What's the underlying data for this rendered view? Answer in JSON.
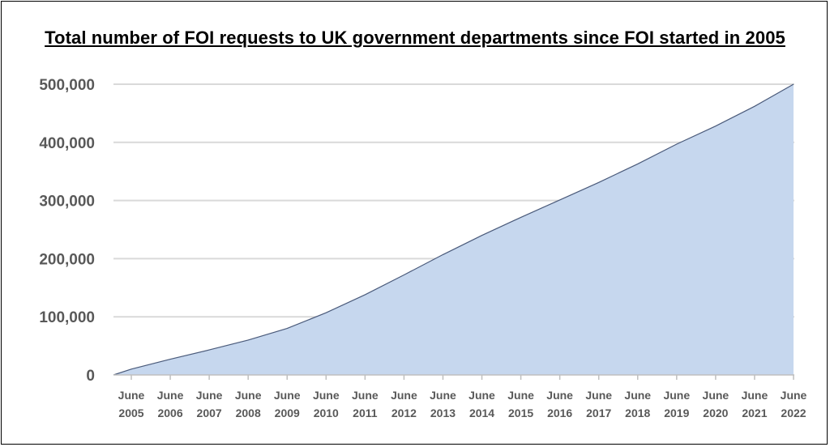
{
  "chart_data": {
    "type": "area",
    "title": "Total number of FOI requests to UK government departments since FOI started in 2005",
    "xlabel": "",
    "ylabel": "",
    "ylim": [
      0,
      500000
    ],
    "yticks": [
      0,
      100000,
      200000,
      300000,
      400000,
      500000
    ],
    "ytick_labels": [
      "0",
      "100,000",
      "200,000",
      "300,000",
      "400,000",
      "500,000"
    ],
    "x_tick_labels": [
      [
        "June",
        "2005"
      ],
      [
        "June",
        "2006"
      ],
      [
        "June",
        "2007"
      ],
      [
        "June",
        "2008"
      ],
      [
        "June",
        "2009"
      ],
      [
        "June",
        "2010"
      ],
      [
        "June",
        "2011"
      ],
      [
        "June",
        "2012"
      ],
      [
        "June",
        "2013"
      ],
      [
        "June",
        "2014"
      ],
      [
        "June",
        "2015"
      ],
      [
        "June",
        "2016"
      ],
      [
        "June",
        "2017"
      ],
      [
        "June",
        "2018"
      ],
      [
        "June",
        "2019"
      ],
      [
        "June",
        "2020"
      ],
      [
        "June",
        "2021"
      ],
      [
        "June",
        "2022"
      ]
    ],
    "grid": true,
    "legend": "none",
    "colors": {
      "fill": "#c6d7ee",
      "line": "#4a5a7a",
      "grid": "#d9d9d9",
      "axis": "#bfbfbf",
      "tick_text": "#595959"
    },
    "x": [
      "Jan 2005",
      "Jun 2005",
      "Jun 2006",
      "Jun 2007",
      "Jun 2008",
      "Jun 2009",
      "Jun 2010",
      "Jun 2011",
      "Jun 2012",
      "Jun 2013",
      "Jun 2014",
      "Jun 2015",
      "Jun 2016",
      "Jun 2017",
      "Jun 2018",
      "Jun 2019",
      "Jun 2020",
      "Jun 2021",
      "Jun 2022"
    ],
    "values": [
      0,
      10000,
      27000,
      43000,
      60000,
      80000,
      107000,
      138000,
      172000,
      207000,
      240000,
      271000,
      301000,
      331000,
      363000,
      397000,
      428000,
      462000,
      500000
    ]
  }
}
